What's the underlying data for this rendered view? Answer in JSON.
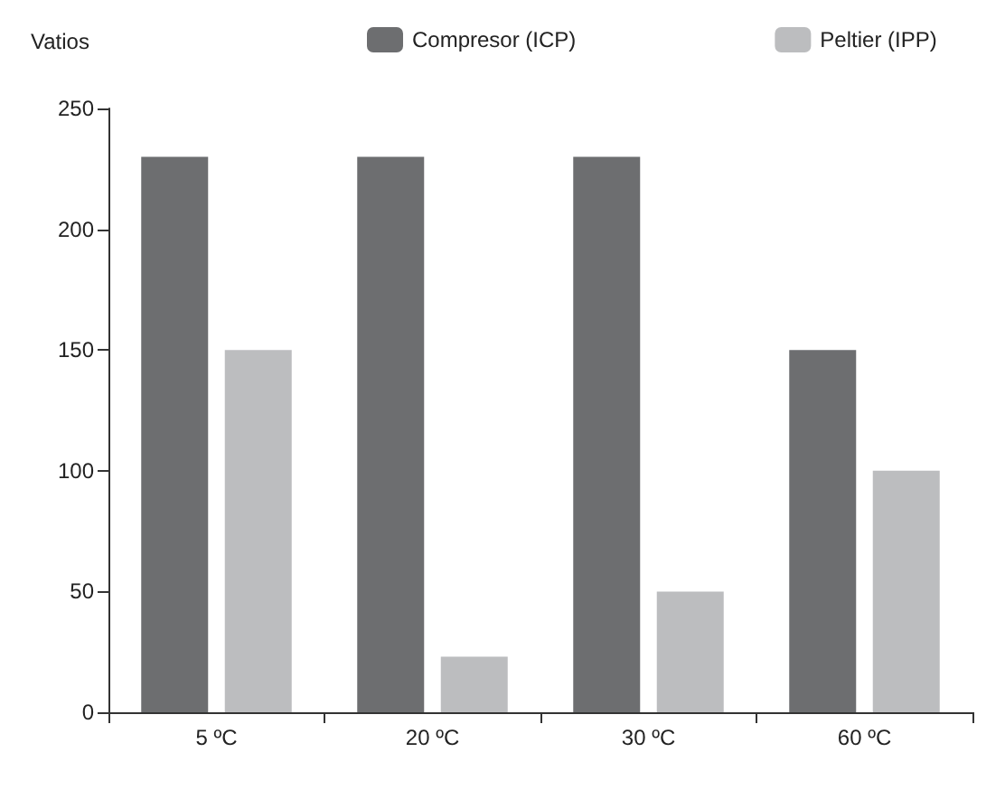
{
  "chart_data": {
    "type": "bar",
    "ylabel": "Vatios",
    "categories": [
      "5 ºC",
      "20 ºC",
      "30 ºC",
      "60 ºC"
    ],
    "series": [
      {
        "name": "Compresor (ICP)",
        "color": "#6d6e70",
        "values": [
          230,
          230,
          230,
          150
        ]
      },
      {
        "name": "Peltier (IPP)",
        "color": "#bcbdbf",
        "values": [
          150,
          23,
          50,
          100
        ]
      }
    ],
    "ylim": [
      0,
      250
    ],
    "yticks": [
      0,
      50,
      100,
      150,
      200,
      250
    ],
    "grid": false,
    "legend": "top"
  }
}
